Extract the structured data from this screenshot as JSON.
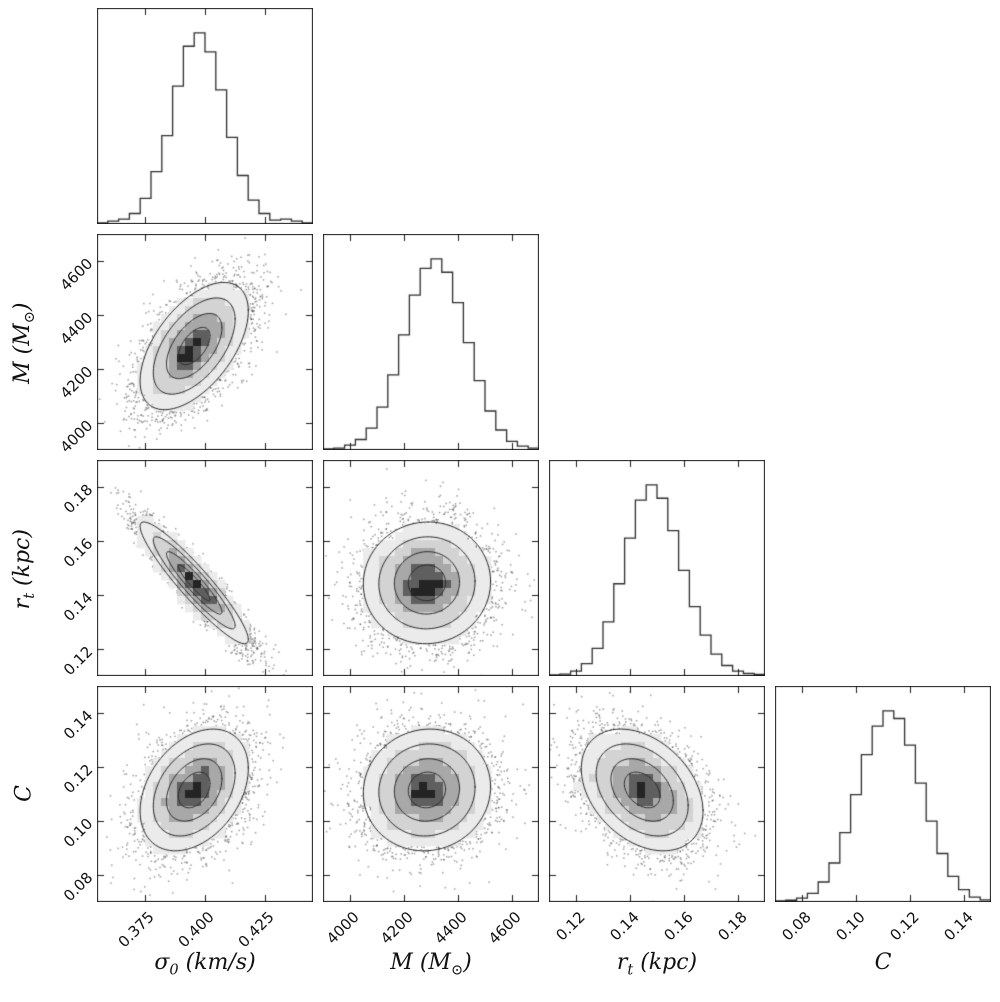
{
  "chart_data": {
    "type": "scatter",
    "subtype": "corner-plot",
    "title": "",
    "description": "Corner (triangle) plot of MCMC posterior distributions for four parameters: diagonal 1D histograms and lower-triangle 2D density/contour/scatter panels",
    "parameters": [
      "sigma0",
      "M",
      "rt",
      "C"
    ],
    "params": {
      "sigma0": {
        "label": "σ₀ (km/s)",
        "label_parts": [
          {
            "t": "σ"
          },
          {
            "t": "0",
            "sub": true
          },
          {
            "t": " (km/s)"
          }
        ],
        "range": [
          0.355,
          0.445
        ],
        "ticks": [
          0.375,
          0.4,
          0.425
        ],
        "tick_labels": [
          "0.375",
          "0.400",
          "0.425"
        ],
        "mean": 0.3955,
        "sigma": 0.011,
        "hist": [
          0,
          0.01,
          0.02,
          0.05,
          0.13,
          0.27,
          0.46,
          0.72,
          0.93,
          1,
          0.9,
          0.7,
          0.45,
          0.25,
          0.12,
          0.05,
          0.015,
          0.02,
          0.01,
          0
        ]
      },
      "M": {
        "label": "M (M☉)",
        "label_parts": [
          {
            "t": "M"
          },
          {
            "t": " ("
          },
          {
            "t": "M"
          },
          {
            "t": "⊙",
            "sub": true
          },
          {
            "t": ")"
          }
        ],
        "range": [
          3900,
          4700
        ],
        "ticks": [
          4000,
          4200,
          4400,
          4600
        ],
        "tick_labels": [
          "4000",
          "4200",
          "4400",
          "4600"
        ],
        "mean": 4285,
        "sigma": 115,
        "hist": [
          0,
          0.005,
          0.02,
          0.05,
          0.11,
          0.22,
          0.39,
          0.6,
          0.81,
          0.95,
          1,
          0.93,
          0.77,
          0.56,
          0.36,
          0.2,
          0.1,
          0.04,
          0.015,
          0.005
        ]
      },
      "rt": {
        "label": "rₜ (kpc)",
        "label_parts": [
          {
            "t": "r"
          },
          {
            "t": "t",
            "sub": true
          },
          {
            "t": " (kpc)"
          }
        ],
        "range": [
          0.11,
          0.19
        ],
        "ticks": [
          0.12,
          0.14,
          0.16,
          0.18
        ],
        "tick_labels": [
          "0.12",
          "0.14",
          "0.16",
          "0.18"
        ],
        "mean": 0.1445,
        "sigma": 0.011,
        "hist": [
          0,
          0.005,
          0.02,
          0.06,
          0.14,
          0.28,
          0.48,
          0.72,
          0.92,
          1,
          0.93,
          0.76,
          0.55,
          0.36,
          0.21,
          0.11,
          0.05,
          0.02,
          0.008,
          0.003
        ]
      },
      "C": {
        "label": "C",
        "label_parts": [
          {
            "t": "C"
          }
        ],
        "range": [
          0.07,
          0.15
        ],
        "ticks": [
          0.08,
          0.1,
          0.12,
          0.14
        ],
        "tick_labels": [
          "0.08",
          "0.10",
          "0.12",
          "0.14"
        ],
        "mean": 0.1115,
        "sigma": 0.011,
        "hist": [
          0,
          0.004,
          0.015,
          0.04,
          0.1,
          0.2,
          0.36,
          0.56,
          0.77,
          0.92,
          1,
          0.96,
          0.82,
          0.62,
          0.42,
          0.25,
          0.13,
          0.06,
          0.02,
          0.006
        ]
      }
    },
    "panels": [
      {
        "row": 0,
        "col": 0,
        "type": "hist",
        "param": "sigma0"
      },
      {
        "row": 1,
        "col": 0,
        "type": "scatter",
        "x": "sigma0",
        "y": "M",
        "rho": 0.55
      },
      {
        "row": 1,
        "col": 1,
        "type": "hist",
        "param": "M"
      },
      {
        "row": 2,
        "col": 0,
        "type": "scatter",
        "x": "sigma0",
        "y": "rt",
        "rho": -0.93
      },
      {
        "row": 2,
        "col": 1,
        "type": "scatter",
        "x": "M",
        "y": "rt",
        "rho": 0.02
      },
      {
        "row": 2,
        "col": 2,
        "type": "hist",
        "param": "rt"
      },
      {
        "row": 3,
        "col": 0,
        "type": "scatter",
        "x": "sigma0",
        "y": "C",
        "rho": 0.35
      },
      {
        "row": 3,
        "col": 1,
        "type": "scatter",
        "x": "M",
        "y": "C",
        "rho": 0.05
      },
      {
        "row": 3,
        "col": 2,
        "type": "scatter",
        "x": "rt",
        "y": "C",
        "rho": -0.35
      },
      {
        "row": 3,
        "col": 3,
        "type": "hist",
        "param": "C"
      }
    ],
    "n_points": 4500,
    "style": {
      "point_color": "rgba(42,42,42,0.45)",
      "contour_color": "#2a2a2a",
      "hist_color": "#2f2f2f",
      "frame_color": "#1a1a1a",
      "fill_colors": [
        "#ebebeb",
        "#d3d3d3",
        "#a8a8a8",
        "#5f5f5f",
        "#242424"
      ],
      "fill_thresholds": [
        0.12,
        0.3,
        0.58,
        0.835,
        0.95
      ],
      "contour_radii": [
        2.05,
        1.55,
        1.05,
        0.6
      ]
    }
  }
}
